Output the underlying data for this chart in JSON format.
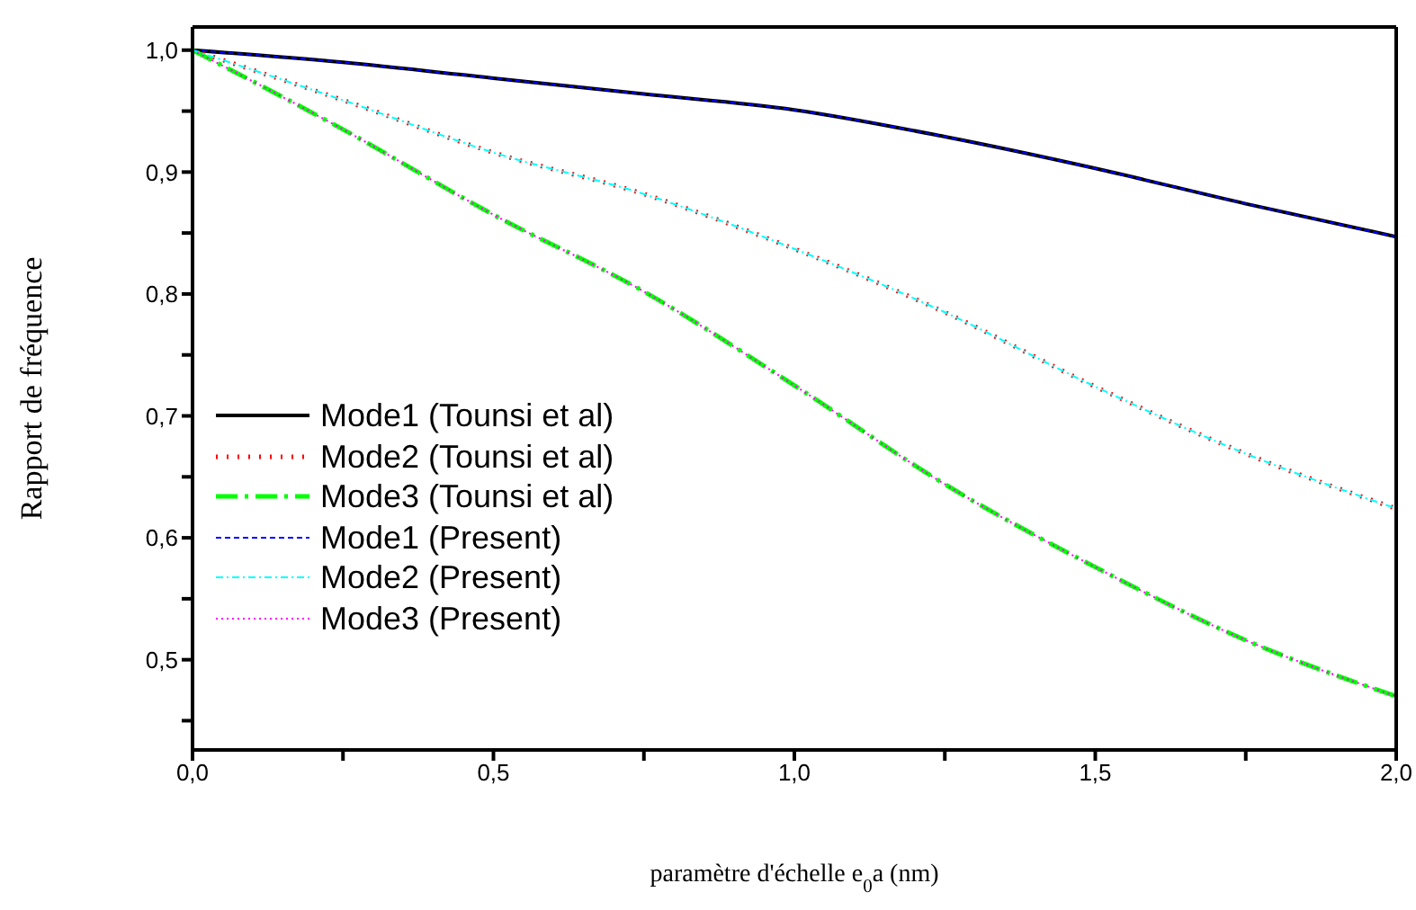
{
  "chart_data": {
    "type": "line",
    "xlabel": "paramètre d'échelle e$_{0}$a (nm)",
    "ylabel": "Rapport de fréquence",
    "x": [
      0,
      0.25,
      0.5,
      0.75,
      1.0,
      1.25,
      1.5,
      1.75,
      2.0
    ],
    "xlim": [
      0,
      2
    ],
    "ylim": [
      0.426,
      1.019
    ],
    "xticks": [
      {
        "value": 0,
        "label": "0,0"
      },
      {
        "value": 0.25,
        "label": null
      },
      {
        "value": 0.5,
        "label": "0,5"
      },
      {
        "value": 0.75,
        "label": null
      },
      {
        "value": 1.0,
        "label": "1,0"
      },
      {
        "value": 1.25,
        "label": null
      },
      {
        "value": 1.5,
        "label": "1,5"
      },
      {
        "value": 1.75,
        "label": null
      },
      {
        "value": 2.0,
        "label": "2,0"
      }
    ],
    "yticks": [
      {
        "value": 0.45,
        "label": null
      },
      {
        "value": 0.5,
        "label": "0,5"
      },
      {
        "value": 0.55,
        "label": null
      },
      {
        "value": 0.6,
        "label": "0,6"
      },
      {
        "value": 0.65,
        "label": null
      },
      {
        "value": 0.7,
        "label": "0,7"
      },
      {
        "value": 0.75,
        "label": null
      },
      {
        "value": 0.8,
        "label": "0,8"
      },
      {
        "value": 0.85,
        "label": null
      },
      {
        "value": 0.9,
        "label": "0,9"
      },
      {
        "value": 0.95,
        "label": null
      },
      {
        "value": 1.0,
        "label": "1,0"
      }
    ],
    "legend": "left",
    "grid": false,
    "marker": "none",
    "series": [
      {
        "name": "Mode1 (Tounsi et al)",
        "color": "#000000",
        "line_style": "solid",
        "values": [
          1.0,
          0.99,
          0.977,
          0.964,
          0.951,
          0.929,
          0.903,
          0.874,
          0.847
        ]
      },
      {
        "name": "Mode2 (Tounsi et al)",
        "color": "#ff0000",
        "line_style": "dotted",
        "values": [
          1.0,
          0.959,
          0.916,
          0.882,
          0.837,
          0.785,
          0.724,
          0.669,
          0.624
        ]
      },
      {
        "name": "Mode3 (Tounsi et al)",
        "color": "#00ff00",
        "line_style": "dashed",
        "values": [
          1.0,
          0.935,
          0.865,
          0.802,
          0.725,
          0.644,
          0.576,
          0.516,
          0.47
        ]
      },
      {
        "name": "Mode1 (Present)",
        "color": "#0000ff",
        "line_style": "dashed",
        "values": [
          1.0,
          0.99,
          0.977,
          0.964,
          0.951,
          0.929,
          0.903,
          0.874,
          0.847
        ]
      },
      {
        "name": "Mode2 (Present)",
        "color": "#00ffff",
        "line_style": "dashed",
        "values": [
          1.0,
          0.959,
          0.916,
          0.882,
          0.837,
          0.785,
          0.724,
          0.669,
          0.624
        ]
      },
      {
        "name": "Mode3 (Present)",
        "color": "#ff00ff",
        "line_style": "dotted",
        "values": [
          1.0,
          0.935,
          0.865,
          0.802,
          0.725,
          0.644,
          0.576,
          0.516,
          0.47
        ]
      }
    ]
  }
}
